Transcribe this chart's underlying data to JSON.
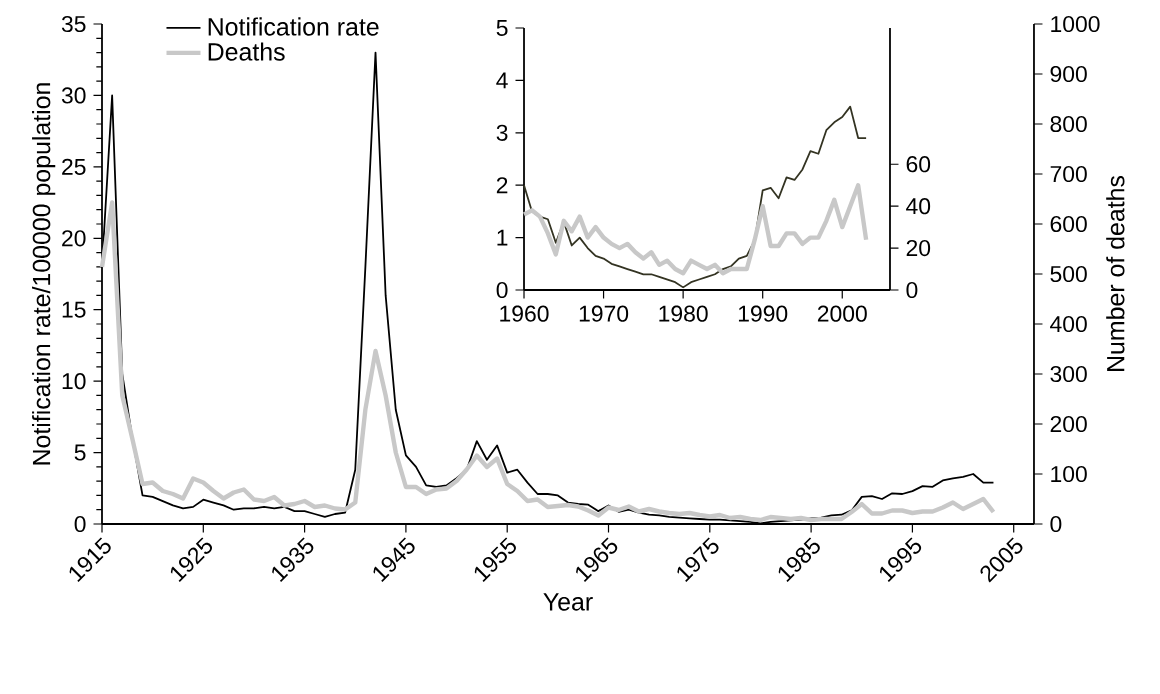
{
  "chart_data": [
    {
      "type": "line",
      "xlabel": "Year",
      "ylabel": "Notification rate/100000 population",
      "y2label": "Number of deaths",
      "legend": "top left",
      "x": [
        1915,
        1916,
        1917,
        1918,
        1919,
        1920,
        1921,
        1922,
        1923,
        1924,
        1925,
        1926,
        1927,
        1928,
        1929,
        1930,
        1931,
        1932,
        1933,
        1934,
        1935,
        1936,
        1937,
        1938,
        1939,
        1940,
        1941,
        1942,
        1943,
        1944,
        1945,
        1946,
        1947,
        1948,
        1949,
        1950,
        1951,
        1952,
        1953,
        1954,
        1955,
        1956,
        1957,
        1958,
        1959,
        1960,
        1961,
        1962,
        1963,
        1964,
        1965,
        1966,
        1967,
        1968,
        1969,
        1970,
        1971,
        1972,
        1973,
        1974,
        1975,
        1976,
        1977,
        1978,
        1979,
        1980,
        1981,
        1982,
        1983,
        1984,
        1985,
        1986,
        1987,
        1988,
        1989,
        1990,
        1991,
        1992,
        1993,
        1994,
        1995,
        1996,
        1997,
        1998,
        1999,
        2000,
        2001,
        2002,
        2003
      ],
      "xlim": [
        1915,
        2007
      ],
      "xticks": [
        1915,
        1925,
        1935,
        1945,
        1955,
        1965,
        1975,
        1985,
        1995,
        2005
      ],
      "ylim": [
        0,
        35
      ],
      "yticks": [
        0,
        5,
        10,
        15,
        20,
        25,
        30,
        35
      ],
      "y2lim": [
        0,
        1000
      ],
      "y2ticks": [
        0,
        100,
        200,
        300,
        400,
        500,
        600,
        700,
        800,
        900,
        1000
      ],
      "series": [
        {
          "name": "Notification rate",
          "color": "#000000",
          "values": [
            18,
            30,
            10.5,
            6,
            2,
            1.9,
            1.6,
            1.3,
            1.1,
            1.2,
            1.7,
            1.5,
            1.3,
            1.0,
            1.1,
            1.1,
            1.2,
            1.1,
            1.2,
            0.9,
            0.9,
            0.7,
            0.5,
            0.7,
            0.8,
            3.8,
            18,
            33,
            16,
            8,
            4.8,
            4,
            2.7,
            2.6,
            2.7,
            3.2,
            3.8,
            5.8,
            4.5,
            5.5,
            3.6,
            3.8,
            2.9,
            2.1,
            2.1,
            2,
            1.5,
            1.4,
            1.35,
            0.9,
            1.3,
            0.85,
            1,
            0.8,
            0.65,
            0.6,
            0.5,
            0.45,
            0.4,
            0.35,
            0.3,
            0.3,
            0.25,
            0.2,
            0.15,
            0.05,
            0.15,
            0.2,
            0.25,
            0.3,
            0.4,
            0.45,
            0.6,
            0.65,
            0.95,
            1.9,
            1.95,
            1.75,
            2.15,
            2.1,
            2.3,
            2.65,
            2.6,
            3.05,
            3.2,
            3.3,
            3.5,
            2.9,
            2.9
          ]
        },
        {
          "name": "Deaths",
          "color": "#c8c8c8",
          "axis": "y2",
          "values": [
            514,
            643,
            257,
            170,
            80,
            83,
            66,
            60,
            51,
            91,
            83,
            66,
            51,
            63,
            69,
            49,
            46,
            54,
            37,
            40,
            46,
            34,
            37,
            31,
            29,
            43,
            229,
            346,
            257,
            143,
            74,
            74,
            60,
            69,
            71,
            86,
            109,
            137,
            114,
            131,
            80,
            66,
            46,
            49,
            34,
            36,
            38,
            35,
            27,
            17,
            33,
            28,
            35,
            25,
            30,
            25,
            22,
            20,
            22,
            18,
            15,
            18,
            12,
            14,
            10,
            8,
            14,
            12,
            10,
            12,
            8,
            10,
            10,
            10,
            24,
            40,
            21,
            21,
            27,
            27,
            22,
            25,
            25,
            33,
            43,
            30,
            40,
            50,
            24
          ]
        }
      ]
    },
    {
      "type": "line",
      "x": [
        1960,
        1961,
        1962,
        1963,
        1964,
        1965,
        1966,
        1967,
        1968,
        1969,
        1970,
        1971,
        1972,
        1973,
        1974,
        1975,
        1976,
        1977,
        1978,
        1979,
        1980,
        1981,
        1982,
        1983,
        1984,
        1985,
        1986,
        1987,
        1988,
        1989,
        1990,
        1991,
        1992,
        1993,
        1994,
        1995,
        1996,
        1997,
        1998,
        1999,
        2000,
        2001,
        2002,
        2003
      ],
      "xlim": [
        1960,
        2006
      ],
      "xticks": [
        1960,
        1970,
        1980,
        1990,
        2000
      ],
      "ylim": [
        0,
        5
      ],
      "yticks": [
        0,
        1,
        2,
        3,
        4,
        5
      ],
      "y2lim": [
        0,
        125
      ],
      "y2ticks": [
        0,
        20,
        40,
        60
      ],
      "series": [
        {
          "color": "#333322",
          "values": [
            2,
            1.5,
            1.4,
            1.35,
            0.9,
            1.3,
            0.85,
            1,
            0.8,
            0.65,
            0.6,
            0.5,
            0.45,
            0.4,
            0.35,
            0.3,
            0.3,
            0.25,
            0.2,
            0.15,
            0.05,
            0.15,
            0.2,
            0.25,
            0.3,
            0.4,
            0.45,
            0.6,
            0.65,
            0.95,
            1.9,
            1.95,
            1.75,
            2.15,
            2.1,
            2.3,
            2.65,
            2.6,
            3.05,
            3.2,
            3.3,
            3.5,
            2.9,
            2.9
          ]
        },
        {
          "color": "#c8c8c8",
          "axis": "y2",
          "values": [
            36,
            38,
            35,
            27,
            17,
            33,
            28,
            35,
            25,
            30,
            25,
            22,
            20,
            22,
            18,
            15,
            18,
            12,
            14,
            10,
            8,
            14,
            12,
            10,
            12,
            8,
            10,
            10,
            10,
            24,
            40,
            21,
            21,
            27,
            27,
            22,
            25,
            25,
            33,
            43,
            30,
            40,
            50,
            24
          ]
        }
      ]
    }
  ]
}
